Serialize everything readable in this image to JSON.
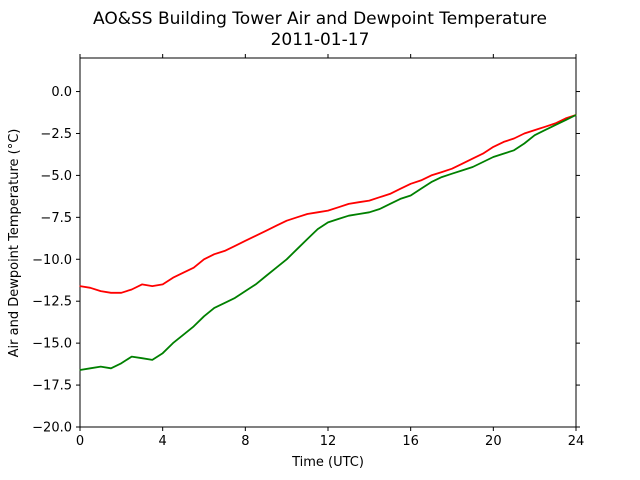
{
  "chart_data": {
    "type": "line",
    "title": "AO&SS Building Tower Air and Dewpoint Temperature",
    "subtitle": "2011-01-17",
    "xlabel": "Time (UTC)",
    "ylabel": "Air and Dewpoint Temperature (°C)",
    "xlim": [
      0,
      24
    ],
    "ylim": [
      -20,
      2
    ],
    "xticks": [
      0,
      4,
      8,
      12,
      16,
      20,
      24
    ],
    "yticks": [
      0.0,
      -2.5,
      -5.0,
      -7.5,
      -10.0,
      -12.5,
      -15.0,
      -17.5,
      -20.0
    ],
    "ytick_labels": [
      "0.0",
      "−2.5",
      "−5.0",
      "−7.5",
      "−10.0",
      "−12.5",
      "−15.0",
      "−17.5",
      "−20.0"
    ],
    "grid": false,
    "series": [
      {
        "color": "#ff0000",
        "x": [
          0,
          0.5,
          1,
          1.5,
          2,
          2.5,
          3,
          3.5,
          4,
          4.5,
          5,
          5.5,
          6,
          6.5,
          7,
          7.5,
          8,
          8.5,
          9,
          9.5,
          10,
          10.5,
          11,
          11.5,
          12,
          12.5,
          13,
          13.5,
          14,
          14.5,
          15,
          15.5,
          16,
          16.5,
          17,
          17.5,
          18,
          18.5,
          19,
          19.5,
          20,
          20.5,
          21,
          21.5,
          22,
          22.5,
          23,
          23.5,
          24
        ],
        "values": [
          -11.6,
          -11.7,
          -11.9,
          -12.0,
          -12.0,
          -11.8,
          -11.5,
          -11.6,
          -11.5,
          -11.1,
          -10.8,
          -10.5,
          -10.0,
          -9.7,
          -9.5,
          -9.2,
          -8.9,
          -8.6,
          -8.3,
          -8.0,
          -7.7,
          -7.5,
          -7.3,
          -7.2,
          -7.1,
          -6.9,
          -6.7,
          -6.6,
          -6.5,
          -6.3,
          -6.1,
          -5.8,
          -5.5,
          -5.3,
          -5.0,
          -4.8,
          -4.6,
          -4.3,
          -4.0,
          -3.7,
          -3.3,
          -3.0,
          -2.8,
          -2.5,
          -2.3,
          -2.1,
          -1.9,
          -1.6,
          -1.4
        ]
      },
      {
        "color": "#008000",
        "x": [
          0,
          0.5,
          1,
          1.5,
          2,
          2.5,
          3,
          3.5,
          4,
          4.5,
          5,
          5.5,
          6,
          6.5,
          7,
          7.5,
          8,
          8.5,
          9,
          9.5,
          10,
          10.5,
          11,
          11.5,
          12,
          12.5,
          13,
          13.5,
          14,
          14.5,
          15,
          15.5,
          16,
          16.5,
          17,
          17.5,
          18,
          18.5,
          19,
          19.5,
          20,
          20.5,
          21,
          21.5,
          22,
          22.5,
          23,
          23.5,
          24
        ],
        "values": [
          -16.6,
          -16.5,
          -16.4,
          -16.5,
          -16.2,
          -15.8,
          -15.9,
          -16.0,
          -15.6,
          -15.0,
          -14.5,
          -14.0,
          -13.4,
          -12.9,
          -12.6,
          -12.3,
          -11.9,
          -11.5,
          -11.0,
          -10.5,
          -10.0,
          -9.4,
          -8.8,
          -8.2,
          -7.8,
          -7.6,
          -7.4,
          -7.3,
          -7.2,
          -7.0,
          -6.7,
          -6.4,
          -6.2,
          -5.8,
          -5.4,
          -5.1,
          -4.9,
          -4.7,
          -4.5,
          -4.2,
          -3.9,
          -3.7,
          -3.5,
          -3.1,
          -2.6,
          -2.3,
          -2.0,
          -1.7,
          -1.4
        ]
      }
    ]
  }
}
